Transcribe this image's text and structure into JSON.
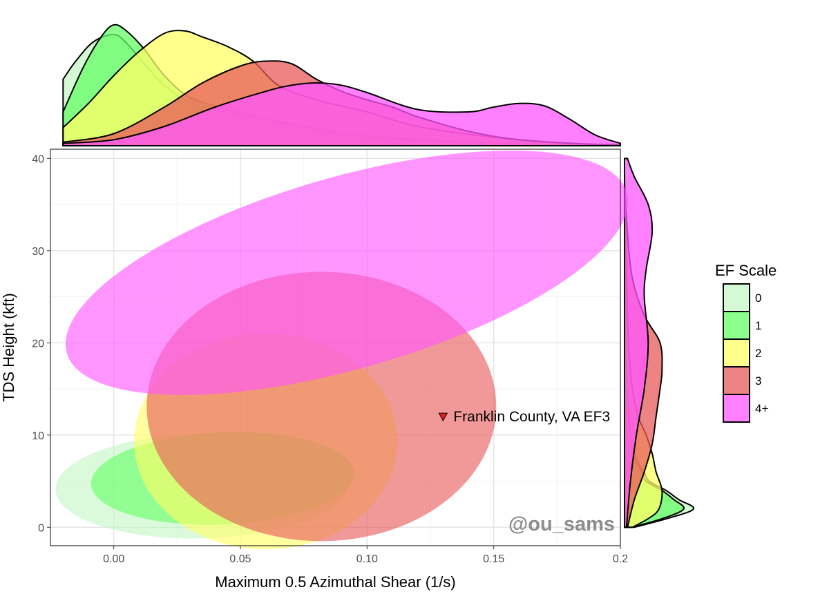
{
  "chart_data": {
    "type": "scatter",
    "subtype": "ellipse-density with marginal density plots",
    "xlabel": "Maximum 0.5 Azimuthal Shear (1/s)",
    "ylabel": "TDS Height (kft)",
    "xlim": [
      -0.025,
      0.2
    ],
    "ylim": [
      -2,
      41
    ],
    "x_ticks": [
      0.0,
      0.05,
      0.1,
      0.15,
      0.2
    ],
    "x_tick_labels": [
      "0.00",
      "0.05",
      "0.10",
      "0.15",
      "0.2"
    ],
    "y_ticks": [
      0,
      10,
      20,
      30,
      40
    ],
    "y_tick_labels": [
      "0",
      "10",
      "20",
      "30",
      "40"
    ],
    "grid": true,
    "legend": {
      "title": "EF Scale",
      "placement": "right",
      "entries": [
        "0",
        "1",
        "2",
        "3",
        "4+"
      ]
    },
    "series": [
      {
        "name": "0",
        "color": "#C5F7C5",
        "ellipse": {
          "cx": 0.035,
          "cy": 4.5,
          "rx": 0.058,
          "ry": 5.7,
          "angle_deg": -1.5
        },
        "marginal_x": [
          [
            -0.02,
            0.55
          ],
          [
            -0.015,
            0.7
          ],
          [
            -0.008,
            0.86
          ],
          [
            0.0,
            0.92
          ],
          [
            0.005,
            0.85
          ],
          [
            0.012,
            0.68
          ],
          [
            0.02,
            0.5
          ],
          [
            0.03,
            0.36
          ],
          [
            0.045,
            0.28
          ],
          [
            0.06,
            0.22
          ],
          [
            0.08,
            0.14
          ],
          [
            0.1,
            0.08
          ],
          [
            0.13,
            0.04
          ],
          [
            0.16,
            0.02
          ],
          [
            0.19,
            0.01
          ]
        ],
        "marginal_y": [
          [
            0,
            0.1
          ],
          [
            1,
            0.45
          ],
          [
            2,
            0.7
          ],
          [
            3,
            0.55
          ],
          [
            4,
            0.42
          ],
          [
            5,
            0.25
          ],
          [
            6,
            0.2
          ],
          [
            7,
            0.14
          ],
          [
            9,
            0.08
          ],
          [
            12,
            0.05
          ],
          [
            18,
            0.02
          ],
          [
            25,
            0.01
          ],
          [
            35,
            0.0
          ]
        ]
      },
      {
        "name": "1",
        "color": "#66FF66",
        "ellipse": {
          "cx": 0.043,
          "cy": 5.3,
          "rx": 0.052,
          "ry": 5.0,
          "angle_deg": -2.5
        },
        "marginal_x": [
          [
            -0.02,
            0.28
          ],
          [
            -0.012,
            0.65
          ],
          [
            -0.005,
            0.9
          ],
          [
            0.0,
            1.0
          ],
          [
            0.005,
            0.95
          ],
          [
            0.012,
            0.8
          ],
          [
            0.02,
            0.58
          ],
          [
            0.03,
            0.4
          ],
          [
            0.045,
            0.3
          ],
          [
            0.06,
            0.22
          ],
          [
            0.08,
            0.14
          ],
          [
            0.1,
            0.08
          ],
          [
            0.13,
            0.04
          ],
          [
            0.16,
            0.02
          ],
          [
            0.19,
            0.01
          ]
        ],
        "marginal_y": [
          [
            0,
            0.08
          ],
          [
            1,
            0.4
          ],
          [
            2,
            0.6
          ],
          [
            3,
            0.5
          ],
          [
            4,
            0.38
          ],
          [
            5,
            0.22
          ],
          [
            6,
            0.18
          ],
          [
            7,
            0.12
          ],
          [
            9,
            0.07
          ],
          [
            12,
            0.04
          ],
          [
            18,
            0.02
          ],
          [
            28,
            0.01
          ],
          [
            38,
            0.0
          ]
        ]
      },
      {
        "name": "2",
        "color": "#FFFF66",
        "ellipse": {
          "cx": 0.06,
          "cy": 9.3,
          "rx": 0.052,
          "ry": 11.7,
          "angle_deg": 0
        },
        "marginal_x": [
          [
            -0.02,
            0.15
          ],
          [
            -0.01,
            0.35
          ],
          [
            0.0,
            0.58
          ],
          [
            0.01,
            0.78
          ],
          [
            0.02,
            0.93
          ],
          [
            0.028,
            0.95
          ],
          [
            0.035,
            0.9
          ],
          [
            0.045,
            0.82
          ],
          [
            0.055,
            0.7
          ],
          [
            0.065,
            0.5
          ],
          [
            0.08,
            0.38
          ],
          [
            0.1,
            0.28
          ],
          [
            0.12,
            0.16
          ],
          [
            0.15,
            0.07
          ],
          [
            0.18,
            0.02
          ],
          [
            0.2,
            0.01
          ]
        ],
        "marginal_y": [
          [
            0,
            0.08
          ],
          [
            1,
            0.25
          ],
          [
            2,
            0.35
          ],
          [
            4,
            0.38
          ],
          [
            6,
            0.32
          ],
          [
            8,
            0.28
          ],
          [
            10,
            0.22
          ],
          [
            12,
            0.14
          ],
          [
            15,
            0.08
          ],
          [
            20,
            0.04
          ],
          [
            28,
            0.02
          ],
          [
            38,
            0.0
          ]
        ]
      },
      {
        "name": "3",
        "color": "#E85A5A",
        "ellipse": {
          "cx": 0.082,
          "cy": 13.1,
          "rx": 0.069,
          "ry": 14.6,
          "angle_deg": 0
        },
        "marginal_x": [
          [
            -0.02,
            0.03
          ],
          [
            0.0,
            0.1
          ],
          [
            0.02,
            0.32
          ],
          [
            0.035,
            0.52
          ],
          [
            0.05,
            0.66
          ],
          [
            0.06,
            0.7
          ],
          [
            0.07,
            0.68
          ],
          [
            0.08,
            0.55
          ],
          [
            0.09,
            0.45
          ],
          [
            0.1,
            0.38
          ],
          [
            0.11,
            0.32
          ],
          [
            0.12,
            0.24
          ],
          [
            0.14,
            0.12
          ],
          [
            0.16,
            0.05
          ],
          [
            0.19,
            0.01
          ]
        ],
        "marginal_y": [
          [
            0,
            0.03
          ],
          [
            3,
            0.1
          ],
          [
            6,
            0.2
          ],
          [
            9,
            0.28
          ],
          [
            12,
            0.32
          ],
          [
            15,
            0.36
          ],
          [
            17,
            0.38
          ],
          [
            20,
            0.36
          ],
          [
            23,
            0.2
          ],
          [
            27,
            0.08
          ],
          [
            32,
            0.03
          ],
          [
            38,
            0.0
          ]
        ]
      },
      {
        "name": "4+",
        "color": "#FF55FF",
        "ellipse": {
          "cx": 0.092,
          "cy": 27.6,
          "rx": 0.115,
          "ry": 10.4,
          "angle_deg": -16
        },
        "marginal_x": [
          [
            -0.02,
            0.02
          ],
          [
            0.0,
            0.05
          ],
          [
            0.02,
            0.16
          ],
          [
            0.04,
            0.32
          ],
          [
            0.06,
            0.45
          ],
          [
            0.07,
            0.5
          ],
          [
            0.08,
            0.52
          ],
          [
            0.09,
            0.5
          ],
          [
            0.1,
            0.44
          ],
          [
            0.12,
            0.3
          ],
          [
            0.14,
            0.28
          ],
          [
            0.15,
            0.32
          ],
          [
            0.16,
            0.35
          ],
          [
            0.17,
            0.33
          ],
          [
            0.18,
            0.22
          ],
          [
            0.19,
            0.09
          ],
          [
            0.2,
            0.02
          ]
        ],
        "marginal_y": [
          [
            0,
            0.02
          ],
          [
            5,
            0.06
          ],
          [
            10,
            0.12
          ],
          [
            15,
            0.2
          ],
          [
            20,
            0.24
          ],
          [
            25,
            0.2
          ],
          [
            28,
            0.22
          ],
          [
            32,
            0.28
          ],
          [
            35,
            0.24
          ],
          [
            38,
            0.1
          ],
          [
            40,
            0.03
          ]
        ]
      }
    ],
    "annotations": [
      {
        "label": "Franklin County, VA EF3",
        "x": 0.13,
        "y": 12.0,
        "marker": "down-triangle",
        "color": "#E62020"
      }
    ],
    "watermark": "@ou_sams"
  }
}
